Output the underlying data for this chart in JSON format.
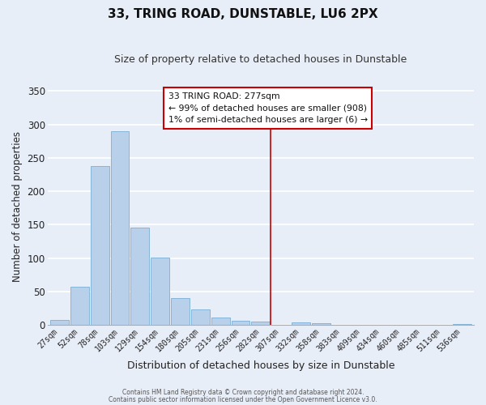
{
  "title": "33, TRING ROAD, DUNSTABLE, LU6 2PX",
  "subtitle": "Size of property relative to detached houses in Dunstable",
  "xlabel": "Distribution of detached houses by size in Dunstable",
  "ylabel": "Number of detached properties",
  "bar_labels": [
    "27sqm",
    "52sqm",
    "78sqm",
    "103sqm",
    "129sqm",
    "154sqm",
    "180sqm",
    "205sqm",
    "231sqm",
    "256sqm",
    "282sqm",
    "307sqm",
    "332sqm",
    "358sqm",
    "383sqm",
    "409sqm",
    "434sqm",
    "460sqm",
    "485sqm",
    "511sqm",
    "536sqm"
  ],
  "bar_heights": [
    8,
    57,
    238,
    290,
    146,
    101,
    41,
    23,
    11,
    6,
    5,
    0,
    4,
    3,
    0,
    0,
    0,
    0,
    0,
    0,
    2
  ],
  "bar_color": "#b8d0ea",
  "bar_edge_color": "#7aafd4",
  "background_color": "#e8eef8",
  "grid_color": "#ffffff",
  "vline_x_index": 10,
  "vline_color": "#cc0000",
  "annotation_title": "33 TRING ROAD: 277sqm",
  "annotation_line1": "← 99% of detached houses are smaller (908)",
  "annotation_line2": "1% of semi-detached houses are larger (6) →",
  "annotation_box_color": "#ffffff",
  "annotation_border_color": "#cc0000",
  "ylim": [
    0,
    355
  ],
  "yticks": [
    0,
    50,
    100,
    150,
    200,
    250,
    300,
    350
  ],
  "footer1": "Contains HM Land Registry data © Crown copyright and database right 2024.",
  "footer2": "Contains public sector information licensed under the Open Government Licence v3.0."
}
